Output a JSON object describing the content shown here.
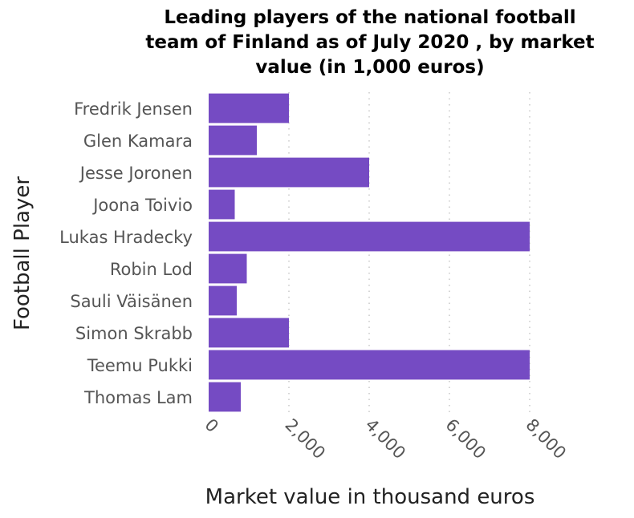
{
  "chart_data": {
    "type": "bar",
    "orientation": "horizontal",
    "title_lines": [
      "Leading players of the national football",
      "team of Finland as of July 2020 , by market",
      "value (in 1,000 euros)"
    ],
    "xlabel": "Market value in thousand euros",
    "ylabel": "Football Player",
    "categories": [
      "Fredrik Jensen",
      "Glen Kamara",
      "Jesse Joronen",
      "Joona Toivio",
      "Lukas Hradecky",
      "Robin Lod",
      "Sauli Väisänen",
      "Simon Skrabb",
      "Teemu Pukki",
      "Thomas Lam"
    ],
    "values": [
      2000,
      1200,
      4000,
      650,
      8000,
      950,
      700,
      2000,
      8000,
      800
    ],
    "xlim": [
      0,
      8000
    ],
    "xticks": [
      0,
      2000,
      4000,
      6000,
      8000
    ],
    "xtick_labels": [
      "0",
      "2,000",
      "4,000",
      "6,000",
      "8,000"
    ],
    "grid": "vertical-dotted",
    "bar_color": "#754bc3"
  }
}
